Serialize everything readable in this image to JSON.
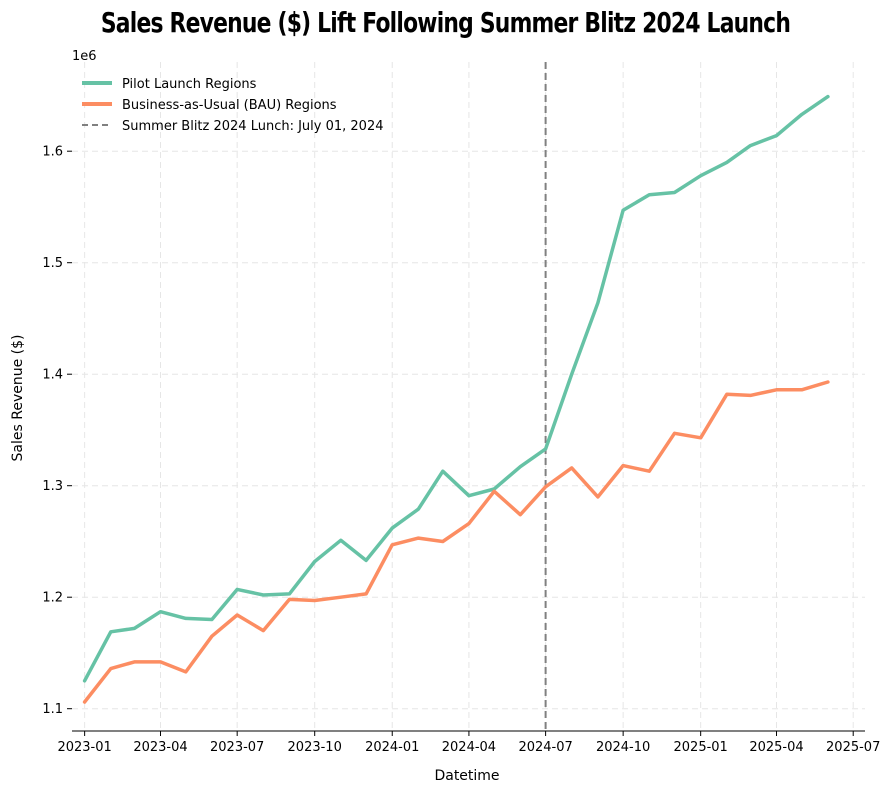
{
  "chart_data": {
    "type": "line",
    "title": "Sales Revenue ($) Lift Following Summer Blitz 2024 Launch",
    "xlabel": "Datetime",
    "ylabel": "Sales Revenue ($)",
    "y_scale_label": "1e6",
    "ylim": [
      1080000,
      1680000
    ],
    "xlim": [
      "2022-12-17",
      "2025-07-15"
    ],
    "yticks": [
      1100000,
      1200000,
      1300000,
      1400000,
      1500000,
      1600000
    ],
    "ytick_labels": [
      "1.1",
      "1.2",
      "1.3",
      "1.4",
      "1.5",
      "1.6"
    ],
    "xticks": [
      "2023-01-01",
      "2023-04-01",
      "2023-07-01",
      "2023-10-01",
      "2024-01-01",
      "2024-04-01",
      "2024-07-01",
      "2024-10-01",
      "2025-01-01",
      "2025-04-01",
      "2025-07-01"
    ],
    "xtick_labels": [
      "2023-01",
      "2023-04",
      "2023-07",
      "2023-10",
      "2024-01",
      "2024-04",
      "2024-07",
      "2024-10",
      "2025-01",
      "2025-04",
      "2025-07"
    ],
    "grid": true,
    "legend_position": "top-left",
    "x": [
      "2023-01-01",
      "2023-02-01",
      "2023-03-01",
      "2023-04-01",
      "2023-05-01",
      "2023-06-01",
      "2023-07-01",
      "2023-08-01",
      "2023-09-01",
      "2023-10-01",
      "2023-11-01",
      "2023-12-01",
      "2024-01-01",
      "2024-02-01",
      "2024-03-01",
      "2024-04-01",
      "2024-05-01",
      "2024-06-01",
      "2024-07-01",
      "2024-08-01",
      "2024-09-01",
      "2024-10-01",
      "2024-11-01",
      "2024-12-01",
      "2025-01-01",
      "2025-02-01",
      "2025-03-01",
      "2025-04-01",
      "2025-05-01",
      "2025-06-01"
    ],
    "series": [
      {
        "name": "Pilot Launch Regions",
        "color": "#66c2a5",
        "values": [
          1125000,
          1169000,
          1172000,
          1187000,
          1181000,
          1180000,
          1207000,
          1202000,
          1203000,
          1232000,
          1251000,
          1233000,
          1262000,
          1279000,
          1313000,
          1291000,
          1297000,
          1317000,
          1333000,
          1400000,
          1464000,
          1547000,
          1561000,
          1563000,
          1578000,
          1590000,
          1605000,
          1614000,
          1633000,
          1649000
        ]
      },
      {
        "name": "Business-as-Usual (BAU) Regions",
        "color": "#fc8d62",
        "values": [
          1106000,
          1136000,
          1142000,
          1142000,
          1133000,
          1165000,
          1184000,
          1170000,
          1198000,
          1197000,
          1200000,
          1203000,
          1247000,
          1253000,
          1250000,
          1266000,
          1295000,
          1274000,
          1299000,
          1316000,
          1290000,
          1318000,
          1313000,
          1347000,
          1343000,
          1382000,
          1381000,
          1386000,
          1386000,
          1393000
        ]
      }
    ],
    "annotations": [
      {
        "type": "vline",
        "x": "2024-07-01",
        "label": "Summer Blitz 2024 Lunch: July 01, 2024",
        "color": "#808080",
        "style": "dashed"
      }
    ]
  }
}
